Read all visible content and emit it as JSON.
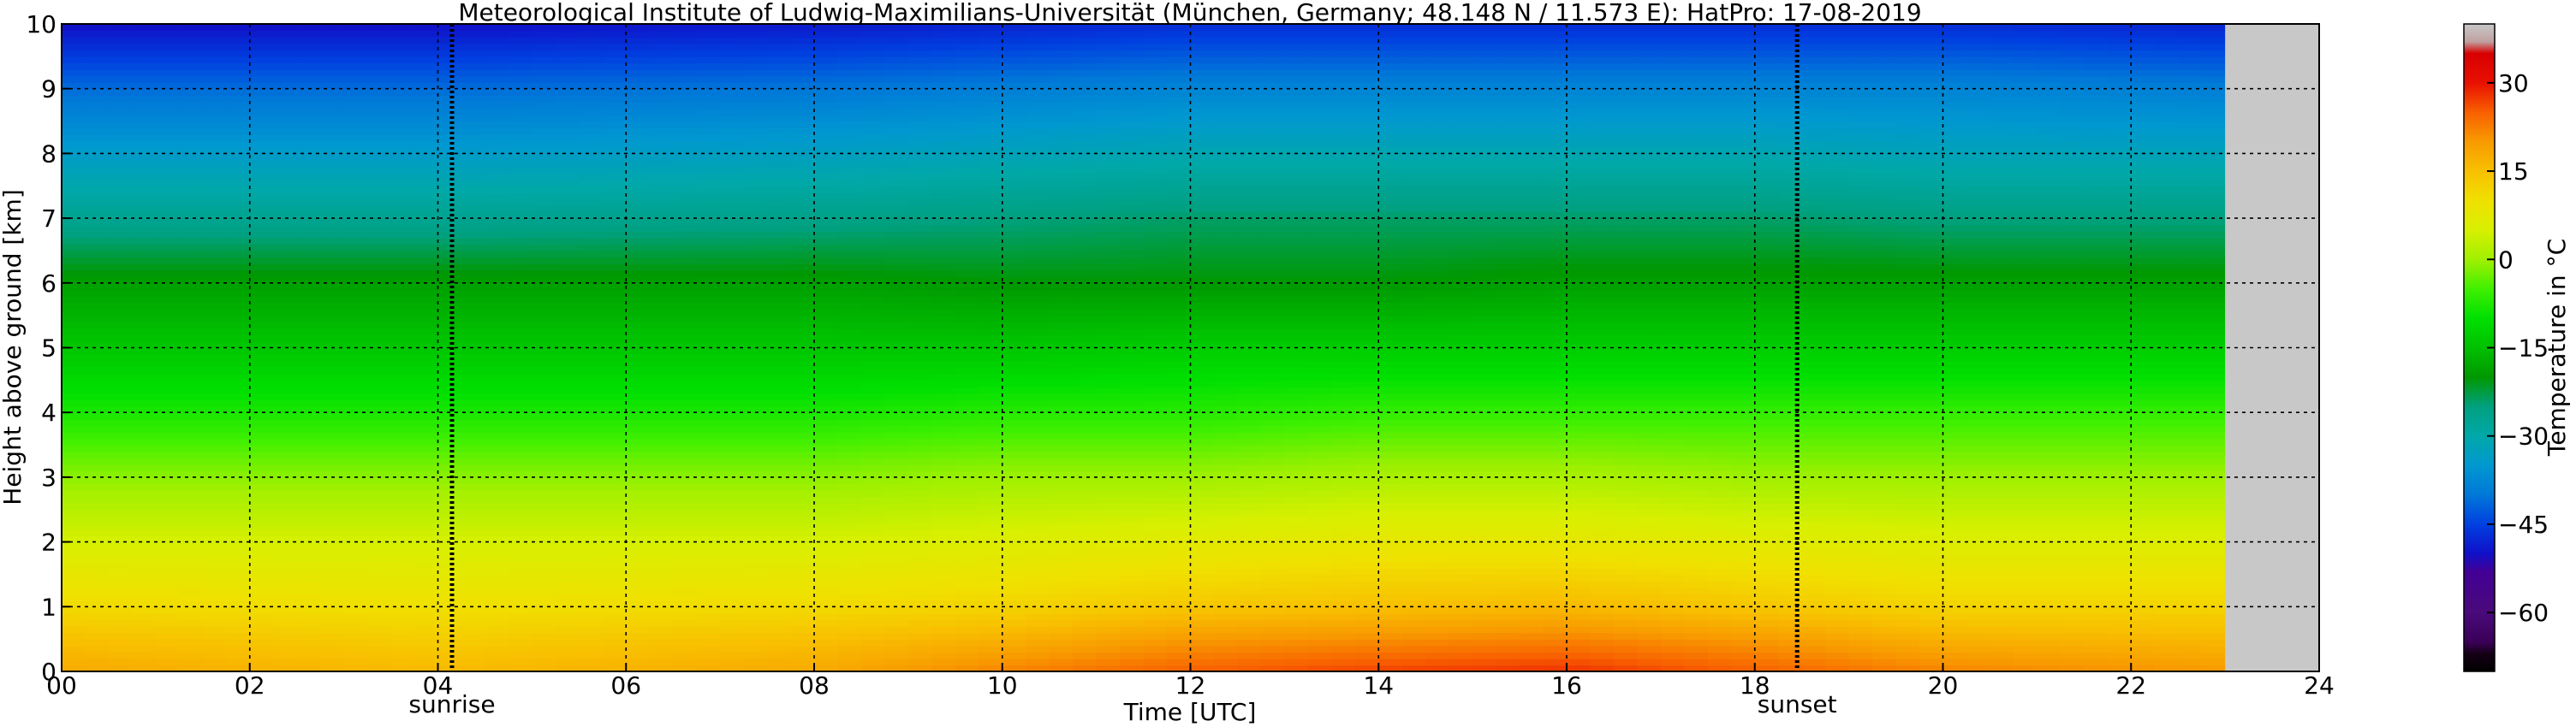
{
  "title": "Meteorological Institute of Ludwig-Maximilians-Universität (München, Germany; 48.148 N / 11.573 E):    HatPro: 17-08-2019",
  "colors": {
    "missing_data": "#c8c8c8",
    "grid": "#000000"
  },
  "chart_data": {
    "type": "heatmap",
    "title": "Meteorological Institute of Ludwig-Maximilians-Universität (München, Germany; 48.148 N / 11.573 E):    HatPro: 17-08-2019",
    "xlabel": "Time [UTC]",
    "ylabel": "Height above ground [km]",
    "xlim": [
      0,
      24
    ],
    "ylim": [
      0,
      10
    ],
    "x_ticks": [
      "00",
      "02",
      "04",
      "06",
      "08",
      "10",
      "12",
      "14",
      "16",
      "18",
      "20",
      "22",
      "24"
    ],
    "y_ticks": [
      "0",
      "1",
      "2",
      "3",
      "4",
      "5",
      "6",
      "7",
      "8",
      "9",
      "10"
    ],
    "grid": true,
    "data_end_time_utc": 23.0,
    "annotations": [
      {
        "label": "sunrise",
        "time_utc": 4.15
      },
      {
        "label": "sunset",
        "time_utc": 18.45
      }
    ],
    "colorbar": {
      "label": "Temperature in °C",
      "range": [
        -70,
        40
      ],
      "ticks": [
        "30",
        "15",
        "0",
        "−15",
        "−30",
        "−45",
        "−60"
      ],
      "tick_values": [
        30,
        15,
        0,
        -15,
        -30,
        -45,
        -60
      ]
    },
    "temperature_profile": {
      "heights_km": [
        0,
        0.5,
        1,
        2,
        3,
        4,
        5,
        6,
        7,
        8,
        9,
        10
      ],
      "time_utc": [
        0,
        4,
        8,
        10,
        12,
        14,
        16,
        18,
        20,
        23
      ],
      "values_c": [
        [
          18,
          16,
          18,
          22,
          25,
          27,
          28,
          25,
          22,
          20
        ],
        [
          15,
          13,
          15,
          17,
          20,
          21,
          22,
          20,
          17,
          16
        ],
        [
          11,
          10,
          11,
          12,
          14,
          15,
          16,
          14,
          12,
          12
        ],
        [
          5,
          5,
          5,
          6,
          7,
          8,
          8,
          7,
          6,
          6
        ],
        [
          -1,
          -1,
          -1,
          0,
          0,
          1,
          1,
          0,
          0,
          0
        ],
        [
          -8,
          -8,
          -8,
          -7,
          -7,
          -6,
          -6,
          -6,
          -6,
          -6
        ],
        [
          -14,
          -14,
          -14,
          -14,
          -13,
          -13,
          -13,
          -13,
          -13,
          -13
        ],
        [
          -19,
          -19,
          -19,
          -20,
          -20,
          -20,
          -19,
          -19,
          -19,
          -19
        ],
        [
          -27,
          -27,
          -26,
          -25,
          -24,
          -24,
          -24,
          -24,
          -25,
          -25
        ],
        [
          -34,
          -34,
          -33,
          -32,
          -31,
          -31,
          -31,
          -31,
          -32,
          -32
        ],
        [
          -41,
          -41,
          -40,
          -39,
          -38,
          -38,
          -38,
          -38,
          -38,
          -39
        ],
        [
          -50,
          -50,
          -49,
          -48,
          -47,
          -47,
          -47,
          -47,
          -47,
          -48
        ]
      ]
    }
  }
}
